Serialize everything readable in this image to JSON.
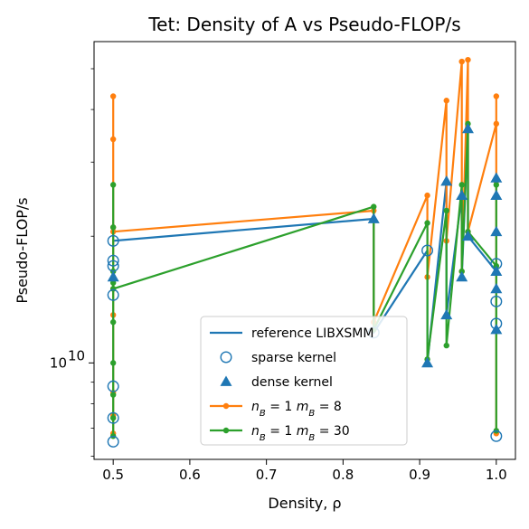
{
  "chart_data": {
    "type": "line",
    "title": "Tet: Density of A vs Pseudo-FLOP/s",
    "xlabel": "Density, ρ",
    "ylabel": "Pseudo-FLOP/s",
    "yscale": "log",
    "xlim": [
      0.475,
      1.025
    ],
    "ylim": [
      5900000000.0,
      58000000000.0
    ],
    "x_ticks": [
      0.5,
      0.6,
      0.7,
      0.8,
      0.9,
      1.0
    ],
    "x_tick_labels": [
      "0.5",
      "0.6",
      "0.7",
      "0.8",
      "0.9",
      "1.0"
    ],
    "y_ticks": [
      10000000000.0
    ],
    "y_tick_labels": [
      "10^10"
    ],
    "legend": {
      "position": "lower-right",
      "entries": [
        {
          "label": "reference LIBXSMM",
          "style": "line",
          "color": "#1f77b4"
        },
        {
          "label": "sparse kernel",
          "style": "open-circle",
          "color": "#1f77b4"
        },
        {
          "label": "dense kernel",
          "style": "triangle",
          "color": "#1f77b4"
        },
        {
          "label_base": "n",
          "label_sub": "B",
          "label_mid": " = 1 m",
          "label_sub2": "B",
          "label_end": " = 8",
          "style": "line-dot",
          "color": "#ff7f0e"
        },
        {
          "label_base": "n",
          "label_sub": "B",
          "label_mid": " = 1 m",
          "label_sub2": "B",
          "label_end": " = 30",
          "style": "line-dot",
          "color": "#2ca02c"
        }
      ]
    },
    "series": [
      {
        "name": "reference LIBXSMM",
        "color": "#1f77b4",
        "style": "line",
        "x": [
          0.5,
          0.84,
          0.84,
          0.91,
          0.91,
          0.935,
          0.935,
          0.955,
          0.955,
          0.963,
          0.963,
          1.0,
          1.0
        ],
        "y": [
          19500000000.0,
          22000000000.0,
          11800000000.0,
          18500000000.0,
          10000000000.0,
          27000000000.0,
          13000000000.0,
          25000000000.0,
          16000000000.0,
          36000000000.0,
          20000000000.0,
          16500000000.0,
          16500000000.0
        ]
      },
      {
        "name": "sparse kernel",
        "color": "#1f77b4",
        "style": "open-circle",
        "x": [
          0.5,
          0.5,
          0.5,
          0.5,
          0.5,
          0.5,
          0.5,
          0.84,
          0.91,
          1.0,
          1.0,
          1.0,
          1.0
        ],
        "y": [
          19500000000.0,
          17500000000.0,
          14500000000.0,
          8800000000.0,
          7400000000.0,
          6500000000.0,
          17000000000.0,
          11800000000.0,
          18500000000.0,
          14000000000.0,
          12400000000.0,
          17200000000.0,
          6700000000.0
        ]
      },
      {
        "name": "dense kernel",
        "color": "#1f77b4",
        "style": "triangle",
        "x": [
          0.5,
          0.84,
          0.91,
          0.935,
          0.935,
          0.955,
          0.955,
          0.963,
          0.963,
          1.0,
          1.0,
          1.0,
          1.0,
          1.0,
          1.0
        ],
        "y": [
          16000000000.0,
          22000000000.0,
          10000000000.0,
          27000000000.0,
          13000000000.0,
          25000000000.0,
          16000000000.0,
          36000000000.0,
          20000000000.0,
          27500000000.0,
          25000000000.0,
          20500000000.0,
          16500000000.0,
          15000000000.0,
          12000000000.0
        ]
      },
      {
        "name": "n_B = 1 m_B = 8",
        "color": "#ff7f0e",
        "style": "line-dot",
        "segments": [
          {
            "x": [
              0.5,
              0.5,
              0.5,
              0.5,
              0.5,
              0.5,
              0.5,
              0.5,
              0.5
            ],
            "y": [
              43000000000.0,
              34000000000.0,
              21000000000.0,
              16000000000.0,
              15000000000.0,
              13000000000.0,
              8500000000.0,
              7500000000.0,
              6800000000.0
            ]
          },
          {
            "x": [
              0.5,
              0.84,
              0.84,
              0.91,
              0.91,
              0.935,
              0.935,
              0.955,
              0.955,
              0.963,
              0.963,
              1.0,
              1.0,
              1.0,
              1.0
            ],
            "y": [
              20500000000.0,
              23000000000.0,
              12500000000.0,
              25000000000.0,
              16000000000.0,
              42000000000.0,
              19500000000.0,
              52000000000.0,
              16500000000.0,
              52500000000.0,
              20500000000.0,
              37000000000.0,
              43000000000.0,
              27000000000.0,
              6800000000.0
            ]
          }
        ],
        "x": [
          0.5,
          0.84,
          0.91,
          0.935,
          0.955,
          0.963,
          1.0
        ],
        "y": [
          20500000000.0,
          23000000000.0,
          25000000000.0,
          42000000000.0,
          52000000000.0,
          52500000000.0,
          37000000000.0
        ]
      },
      {
        "name": "n_B = 1 m_B = 30",
        "color": "#2ca02c",
        "style": "line-dot",
        "segments": [
          {
            "x": [
              0.5,
              0.5,
              0.5,
              0.5,
              0.5,
              0.5,
              0.5,
              0.5,
              0.5
            ],
            "y": [
              26500000000.0,
              21000000000.0,
              16500000000.0,
              15500000000.0,
              12500000000.0,
              10000000000.0,
              8400000000.0,
              7400000000.0,
              6700000000.0
            ]
          },
          {
            "x": [
              0.5,
              0.84,
              0.84,
              0.91,
              0.91,
              0.935,
              0.935,
              0.955,
              0.955,
              0.963,
              0.963,
              1.0,
              1.0,
              1.0,
              1.0
            ],
            "y": [
              15000000000.0,
              23500000000.0,
              12000000000.0,
              21500000000.0,
              10200000000.0,
              23000000000.0,
              11000000000.0,
              26500000000.0,
              16500000000.0,
              37000000000.0,
              20500000000.0,
              17000000000.0,
              26500000000.0,
              20500000000.0,
              6900000000.0
            ]
          }
        ],
        "x": [
          0.5,
          0.84,
          0.91,
          0.935,
          0.955,
          0.963,
          1.0
        ],
        "y": [
          15000000000.0,
          23500000000.0,
          21500000000.0,
          23000000000.0,
          26500000000.0,
          37000000000.0,
          17000000000.0
        ]
      }
    ]
  }
}
